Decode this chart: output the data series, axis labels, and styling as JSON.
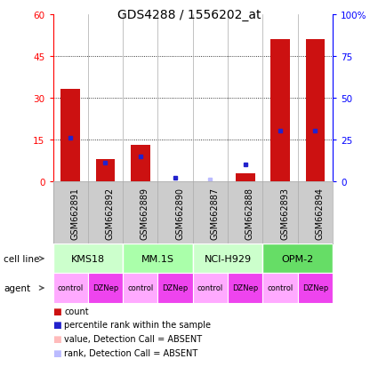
{
  "title": "GDS4288 / 1556202_at",
  "samples": [
    "GSM662891",
    "GSM662892",
    "GSM662889",
    "GSM662890",
    "GSM662887",
    "GSM662888",
    "GSM662893",
    "GSM662894"
  ],
  "count_values": [
    33,
    8,
    13,
    0,
    0,
    3,
    51,
    51
  ],
  "rank_values": [
    26,
    11,
    15,
    2,
    1,
    10,
    30,
    30
  ],
  "absent_value": [
    false,
    false,
    false,
    false,
    true,
    false,
    false,
    false
  ],
  "absent_rank": [
    false,
    false,
    false,
    false,
    true,
    false,
    false,
    false
  ],
  "cell_lines": [
    {
      "label": "KMS18",
      "span": [
        0,
        2
      ],
      "color": "#ccffcc"
    },
    {
      "label": "MM.1S",
      "span": [
        2,
        4
      ],
      "color": "#aaffaa"
    },
    {
      "label": "NCI-H929",
      "span": [
        4,
        6
      ],
      "color": "#ccffcc"
    },
    {
      "label": "OPM-2",
      "span": [
        6,
        8
      ],
      "color": "#66dd66"
    }
  ],
  "agents": [
    {
      "label": "control",
      "span": [
        0,
        1
      ],
      "color": "#ffaaff"
    },
    {
      "label": "DZNep",
      "span": [
        1,
        2
      ],
      "color": "#ee44ee"
    },
    {
      "label": "control",
      "span": [
        2,
        3
      ],
      "color": "#ffaaff"
    },
    {
      "label": "DZNep",
      "span": [
        3,
        4
      ],
      "color": "#ee44ee"
    },
    {
      "label": "control",
      "span": [
        4,
        5
      ],
      "color": "#ffaaff"
    },
    {
      "label": "DZNep",
      "span": [
        5,
        6
      ],
      "color": "#ee44ee"
    },
    {
      "label": "control",
      "span": [
        6,
        7
      ],
      "color": "#ffaaff"
    },
    {
      "label": "DZNep",
      "span": [
        7,
        8
      ],
      "color": "#ee44ee"
    }
  ],
  "ylim_left": [
    0,
    60
  ],
  "ylim_right": [
    0,
    100
  ],
  "yticks_left": [
    0,
    15,
    30,
    45,
    60
  ],
  "yticks_right": [
    0,
    25,
    50,
    75,
    100
  ],
  "bar_color": "#cc1111",
  "rank_color": "#2222cc",
  "absent_bar_color": "#ffbbbb",
  "absent_rank_color": "#bbbbff",
  "bg_color": "#ffffff",
  "sample_bg_color": "#cccccc",
  "legend_items": [
    {
      "color": "#cc1111",
      "label": "count"
    },
    {
      "color": "#2222cc",
      "label": "percentile rank within the sample"
    },
    {
      "color": "#ffbbbb",
      "label": "value, Detection Call = ABSENT"
    },
    {
      "color": "#bbbbff",
      "label": "rank, Detection Call = ABSENT"
    }
  ]
}
